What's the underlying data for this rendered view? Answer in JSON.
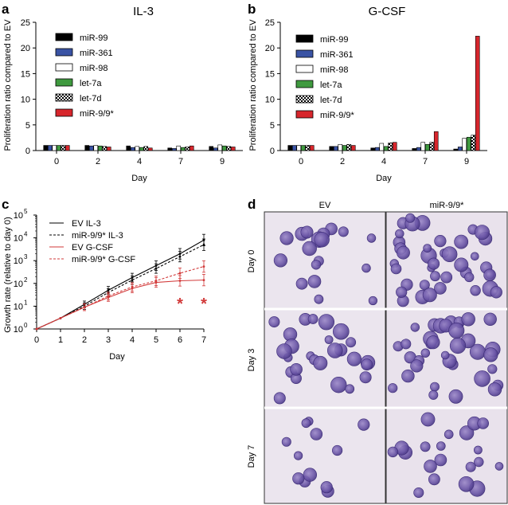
{
  "panels": {
    "a": {
      "letter": "a"
    },
    "b": {
      "letter": "b"
    },
    "c": {
      "letter": "c"
    },
    "d": {
      "letter": "d"
    }
  },
  "colors": {
    "miR-99": "#000000",
    "miR-361": "#3a53a4",
    "miR-98": "#ffffff",
    "let-7a": "#3f9a3f",
    "let-7d": "checker",
    "miR-9/9*": "#d7262c",
    "ev_gcsf_line": "#d23a3a",
    "cells_bg": "#ece6ee",
    "cell_fill": "#6d5aa7"
  },
  "chart_data": [
    {
      "id": "a",
      "type": "bar",
      "title": "IL-3",
      "xlabel": "Day",
      "ylabel": "Proliferation ratio compared to EV",
      "categories": [
        "0",
        "2",
        "4",
        "7",
        "9"
      ],
      "ylim": [
        0,
        25
      ],
      "yticks": [
        "0",
        "5",
        "10",
        "15",
        "20",
        "25"
      ],
      "series": [
        {
          "name": "miR-99",
          "values": [
            1.0,
            1.0,
            0.9,
            0.5,
            0.8
          ]
        },
        {
          "name": "miR-361",
          "values": [
            1.0,
            0.9,
            0.6,
            0.4,
            0.5
          ]
        },
        {
          "name": "miR-98",
          "values": [
            1.0,
            1.0,
            0.8,
            0.9,
            1.1
          ]
        },
        {
          "name": "let-7a",
          "values": [
            1.0,
            0.9,
            0.6,
            0.6,
            0.9
          ]
        },
        {
          "name": "let-7d",
          "values": [
            1.0,
            0.8,
            0.8,
            0.7,
            0.8
          ]
        },
        {
          "name": "miR-9/9*",
          "values": [
            1.0,
            0.7,
            0.5,
            0.9,
            0.7
          ]
        }
      ]
    },
    {
      "id": "b",
      "type": "bar",
      "title": "G-CSF",
      "xlabel": "Day",
      "ylabel": "Proliferation ratio compared to EV",
      "categories": [
        "0",
        "2",
        "4",
        "7",
        "9"
      ],
      "ylim": [
        0,
        25
      ],
      "yticks": [
        "0",
        "5",
        "10",
        "15",
        "20",
        "25"
      ],
      "series": [
        {
          "name": "miR-99",
          "values": [
            1.0,
            0.8,
            0.5,
            0.4,
            0.3
          ]
        },
        {
          "name": "miR-361",
          "values": [
            1.0,
            0.8,
            0.6,
            0.6,
            0.7
          ]
        },
        {
          "name": "miR-98",
          "values": [
            1.0,
            1.2,
            1.4,
            1.6,
            2.4
          ]
        },
        {
          "name": "let-7a",
          "values": [
            1.0,
            1.0,
            0.8,
            1.2,
            2.6
          ]
        },
        {
          "name": "let-7d",
          "values": [
            1.0,
            1.2,
            1.5,
            1.6,
            3.0
          ]
        },
        {
          "name": "miR-9/9*",
          "values": [
            1.0,
            1.0,
            1.6,
            3.7,
            22.3
          ]
        }
      ]
    },
    {
      "id": "c",
      "type": "line",
      "xlabel": "Day",
      "ylabel": "Growth rate (relative to day 0)",
      "x": [
        0,
        1,
        2,
        3,
        4,
        5,
        6,
        7
      ],
      "xticks": [
        "0",
        "1",
        "2",
        "3",
        "4",
        "5",
        "6",
        "7"
      ],
      "yscale": "log",
      "yticks": [
        "10",
        "10",
        "10",
        "10",
        "10",
        "10"
      ],
      "ytick_exps": [
        "0",
        "1",
        "2",
        "3",
        "4",
        "5"
      ],
      "annotations": [
        {
          "text": "*",
          "x": 6
        },
        {
          "text": "*",
          "x": 7
        }
      ],
      "series": [
        {
          "name": "EV IL-3",
          "x": [
            1,
            2,
            3,
            4,
            5,
            6,
            7
          ],
          "values": [
            3,
            12,
            50,
            180,
            600,
            2000,
            8000
          ],
          "style": "solid",
          "color": "#000000"
        },
        {
          "name": "miR-9/9* IL-3",
          "x": [
            1,
            2,
            3,
            4,
            5,
            6,
            7
          ],
          "values": [
            3,
            10,
            40,
            140,
            450,
            1500,
            5000
          ],
          "style": "dashed",
          "color": "#000000"
        },
        {
          "name": "EV G-CSF",
          "x": [
            1,
            2,
            3,
            4,
            5,
            6,
            7
          ],
          "values": [
            3,
            9,
            24,
            60,
            110,
            130,
            140
          ],
          "style": "solid",
          "color": "#d23a3a"
        },
        {
          "name": "miR-9/9* G-CSF",
          "x": [
            1,
            2,
            3,
            4,
            5,
            6,
            7
          ],
          "values": [
            3,
            9,
            28,
            70,
            130,
            280,
            550
          ],
          "style": "dashed",
          "color": "#d23a3a"
        }
      ]
    }
  ],
  "micrographs": {
    "columns": [
      "EV",
      "miR-9/9*"
    ],
    "rows": [
      "Day 0",
      "Day 3",
      "Day 7"
    ]
  }
}
